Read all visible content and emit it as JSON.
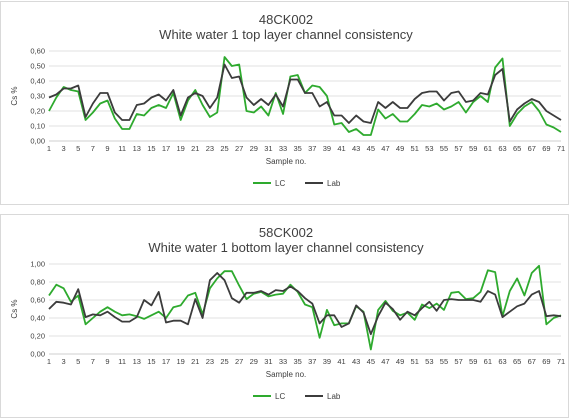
{
  "chart_data": [
    {
      "type": "line",
      "title": "48CK002",
      "subtitle": "White water 1 top layer channel consistency",
      "xlabel": "Sample no.",
      "ylabel": "Cs %",
      "ylim": [
        0,
        0.6
      ],
      "yticks": [
        "0,00",
        "0,10",
        "0,20",
        "0,30",
        "0,40",
        "0,50",
        "0,60"
      ],
      "xticks": [
        "1",
        "3",
        "5",
        "7",
        "9",
        "11",
        "13",
        "15",
        "17",
        "19",
        "21",
        "23",
        "25",
        "27",
        "29",
        "31",
        "33",
        "35",
        "37",
        "39",
        "41",
        "43",
        "45",
        "47",
        "49",
        "51",
        "53",
        "55",
        "57",
        "59",
        "61",
        "63",
        "65",
        "67",
        "69",
        "71"
      ],
      "grid": true,
      "legend_position": "bottom-center",
      "x": [
        1,
        2,
        3,
        4,
        5,
        6,
        7,
        8,
        9,
        10,
        11,
        12,
        13,
        14,
        15,
        16,
        17,
        18,
        19,
        20,
        21,
        22,
        23,
        24,
        25,
        26,
        27,
        28,
        29,
        30,
        31,
        32,
        33,
        34,
        35,
        36,
        37,
        38,
        39,
        40,
        41,
        42,
        43,
        44,
        45,
        46,
        47,
        48,
        49,
        50,
        51,
        52,
        53,
        54,
        55,
        56,
        57,
        58,
        59,
        60,
        61,
        62,
        63,
        64,
        65,
        66,
        67,
        68,
        69,
        70,
        71
      ],
      "series": [
        {
          "name": "LC",
          "color": "#2eaa2e",
          "values": [
            0.2,
            0.29,
            0.36,
            0.34,
            0.33,
            0.14,
            0.19,
            0.25,
            0.27,
            0.15,
            0.08,
            0.08,
            0.18,
            0.17,
            0.22,
            0.24,
            0.22,
            0.32,
            0.14,
            0.27,
            0.34,
            0.24,
            0.16,
            0.19,
            0.56,
            0.5,
            0.51,
            0.2,
            0.19,
            0.23,
            0.17,
            0.32,
            0.18,
            0.43,
            0.44,
            0.32,
            0.37,
            0.36,
            0.3,
            0.11,
            0.12,
            0.06,
            0.08,
            0.04,
            0.04,
            0.21,
            0.15,
            0.18,
            0.13,
            0.13,
            0.18,
            0.24,
            0.23,
            0.25,
            0.21,
            0.23,
            0.26,
            0.19,
            0.26,
            0.3,
            0.26,
            0.49,
            0.55,
            0.1,
            0.18,
            0.23,
            0.26,
            0.2,
            0.11,
            0.09,
            0.06
          ]
        },
        {
          "name": "Lab",
          "color": "#3c3c3c",
          "values": [
            0.29,
            0.31,
            0.35,
            0.35,
            0.37,
            0.16,
            0.25,
            0.32,
            0.32,
            0.19,
            0.14,
            0.14,
            0.24,
            0.25,
            0.29,
            0.31,
            0.27,
            0.34,
            0.17,
            0.29,
            0.32,
            0.3,
            0.22,
            0.29,
            0.51,
            0.42,
            0.43,
            0.29,
            0.24,
            0.28,
            0.24,
            0.31,
            0.23,
            0.41,
            0.41,
            0.32,
            0.32,
            0.23,
            0.26,
            0.17,
            0.17,
            0.12,
            0.17,
            0.13,
            0.12,
            0.26,
            0.22,
            0.26,
            0.22,
            0.22,
            0.28,
            0.32,
            0.33,
            0.33,
            0.27,
            0.32,
            0.33,
            0.26,
            0.27,
            0.32,
            0.31,
            0.44,
            0.48,
            0.13,
            0.21,
            0.25,
            0.28,
            0.26,
            0.2,
            0.17,
            0.14
          ]
        }
      ]
    },
    {
      "type": "line",
      "title": "58CK002",
      "subtitle": "White water 1 bottom layer channel consistency",
      "xlabel": "Sample no.",
      "ylabel": "Cs %",
      "ylim": [
        0,
        1.0
      ],
      "yticks": [
        "0,00",
        "0,20",
        "0,40",
        "0,60",
        "0,80",
        "1,00"
      ],
      "xticks": [
        "1",
        "3",
        "5",
        "7",
        "9",
        "11",
        "13",
        "15",
        "17",
        "19",
        "21",
        "23",
        "25",
        "27",
        "29",
        "31",
        "33",
        "35",
        "37",
        "39",
        "41",
        "43",
        "45",
        "47",
        "49",
        "51",
        "53",
        "55",
        "57",
        "59",
        "61",
        "63",
        "65",
        "67",
        "69",
        "71"
      ],
      "grid": true,
      "legend_position": "bottom-center",
      "x": [
        1,
        2,
        3,
        4,
        5,
        6,
        7,
        8,
        9,
        10,
        11,
        12,
        13,
        14,
        15,
        16,
        17,
        18,
        19,
        20,
        21,
        22,
        23,
        24,
        25,
        26,
        27,
        28,
        29,
        30,
        31,
        32,
        33,
        34,
        35,
        36,
        37,
        38,
        39,
        40,
        41,
        42,
        43,
        44,
        45,
        46,
        47,
        48,
        49,
        50,
        51,
        52,
        53,
        54,
        55,
        56,
        57,
        58,
        59,
        60,
        61,
        62,
        63,
        64,
        65,
        66,
        67,
        68,
        69,
        70,
        71
      ],
      "series": [
        {
          "name": "LC",
          "color": "#2eaa2e",
          "values": [
            0.65,
            0.77,
            0.73,
            0.58,
            0.65,
            0.33,
            0.4,
            0.47,
            0.52,
            0.47,
            0.43,
            0.44,
            0.42,
            0.39,
            0.43,
            0.47,
            0.4,
            0.52,
            0.54,
            0.65,
            0.68,
            0.44,
            0.73,
            0.84,
            0.92,
            0.92,
            0.76,
            0.61,
            0.67,
            0.69,
            0.64,
            0.66,
            0.67,
            0.77,
            0.69,
            0.55,
            0.52,
            0.18,
            0.49,
            0.32,
            0.34,
            0.34,
            0.53,
            0.47,
            0.05,
            0.49,
            0.59,
            0.48,
            0.43,
            0.46,
            0.38,
            0.55,
            0.51,
            0.56,
            0.49,
            0.68,
            0.69,
            0.61,
            0.62,
            0.69,
            0.93,
            0.91,
            0.42,
            0.7,
            0.84,
            0.65,
            0.9,
            0.98,
            0.33,
            0.4,
            0.43
          ]
        },
        {
          "name": "Lab",
          "color": "#3c3c3c",
          "values": [
            0.5,
            0.58,
            0.57,
            0.55,
            0.72,
            0.41,
            0.44,
            0.43,
            0.47,
            0.41,
            0.36,
            0.36,
            0.41,
            0.6,
            0.54,
            0.69,
            0.35,
            0.37,
            0.37,
            0.33,
            0.61,
            0.4,
            0.82,
            0.9,
            0.82,
            0.62,
            0.57,
            0.68,
            0.68,
            0.7,
            0.66,
            0.71,
            0.7,
            0.75,
            0.7,
            0.62,
            0.56,
            0.34,
            0.43,
            0.43,
            0.3,
            0.34,
            0.54,
            0.46,
            0.22,
            0.42,
            0.57,
            0.5,
            0.38,
            0.47,
            0.43,
            0.51,
            0.58,
            0.48,
            0.6,
            0.61,
            0.6,
            0.6,
            0.6,
            0.58,
            0.7,
            0.66,
            0.41,
            0.47,
            0.53,
            0.56,
            0.66,
            0.7,
            0.42,
            0.43,
            0.42
          ]
        }
      ]
    }
  ]
}
